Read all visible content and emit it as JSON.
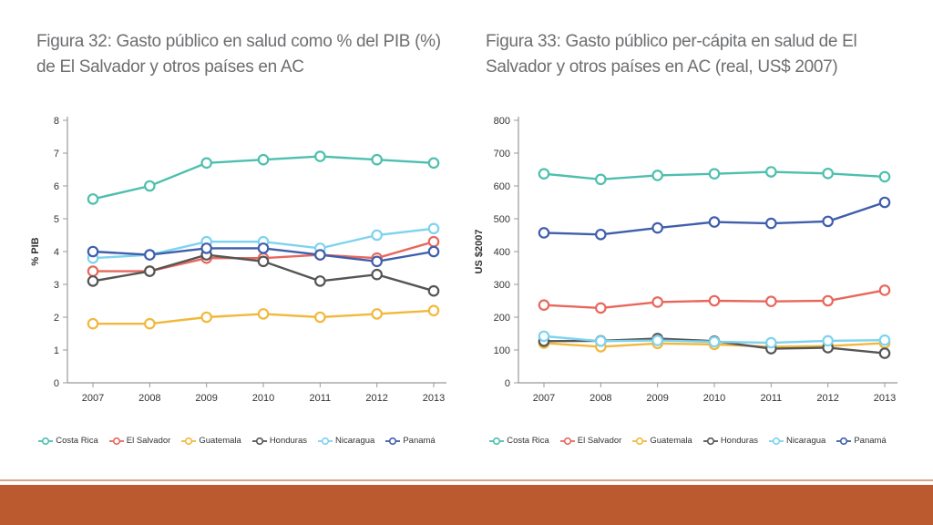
{
  "charts": [
    {
      "id": "left",
      "title": "Figura 32: Gasto público en salud como % del PIB (%) de El Salvador y otros países en AC",
      "ylabel": "% PIB",
      "ylim": [
        0,
        8
      ],
      "yticks": [
        "0",
        "1",
        "2",
        "3",
        "4",
        "5",
        "6",
        "7",
        "8"
      ],
      "categories": [
        "2007",
        "2008",
        "2009",
        "2010",
        "2011",
        "2012",
        "2013"
      ]
    },
    {
      "id": "right",
      "title": "Figura 33: Gasto público per-cápita en salud de El Salvador y otros países en AC (real, US$ 2007)",
      "ylabel": "US $2007",
      "ylim": [
        0,
        800
      ],
      "yticks": [
        "0",
        "100",
        "200",
        "300",
        "400",
        "500",
        "600",
        "700",
        "800"
      ],
      "categories": [
        "2007",
        "2008",
        "2009",
        "2010",
        "2011",
        "2012",
        "2013"
      ]
    }
  ],
  "legend": [
    "Costa Rica",
    "El Salvador",
    "Guatemala",
    "Honduras",
    "Nicaragua",
    "Panamá"
  ],
  "colors": {
    "Costa Rica": "#4dbfae",
    "El Salvador": "#e8675c",
    "Guatemala": "#f2b83c",
    "Honduras": "#555555",
    "Nicaragua": "#7dd3ee",
    "Panamá": "#3f5eab",
    "footer": "#bb5a2e"
  },
  "chart_data": [
    {
      "type": "line",
      "title": "Figura 32: Gasto público en salud como % del PIB (%) de El Salvador y otros países en AC",
      "xlabel": "",
      "ylabel": "% PIB",
      "x": [
        "2007",
        "2008",
        "2009",
        "2010",
        "2011",
        "2012",
        "2013"
      ],
      "ylim": [
        0,
        8
      ],
      "grid": false,
      "legend_position": "bottom",
      "series": [
        {
          "name": "Costa Rica",
          "values": [
            5.6,
            6.0,
            6.7,
            6.8,
            6.9,
            6.8,
            6.7
          ]
        },
        {
          "name": "El Salvador",
          "values": [
            3.4,
            3.4,
            3.8,
            3.8,
            3.9,
            3.8,
            4.3
          ]
        },
        {
          "name": "Guatemala",
          "values": [
            1.8,
            1.8,
            2.0,
            2.1,
            2.0,
            2.1,
            2.2
          ]
        },
        {
          "name": "Honduras",
          "values": [
            3.1,
            3.4,
            3.9,
            3.7,
            3.1,
            3.3,
            2.8
          ]
        },
        {
          "name": "Nicaragua",
          "values": [
            3.8,
            3.9,
            4.3,
            4.3,
            4.1,
            4.5,
            4.7
          ]
        },
        {
          "name": "Panamá",
          "values": [
            4.0,
            3.9,
            4.1,
            4.1,
            3.9,
            3.7,
            4.0
          ]
        }
      ]
    },
    {
      "type": "line",
      "title": "Figura 33: Gasto público per-cápita en salud de El Salvador y otros países en AC (real, US$ 2007)",
      "xlabel": "",
      "ylabel": "US $2007",
      "x": [
        "2007",
        "2008",
        "2009",
        "2010",
        "2011",
        "2012",
        "2013"
      ],
      "ylim": [
        0,
        800
      ],
      "grid": false,
      "legend_position": "bottom",
      "series": [
        {
          "name": "Costa Rica",
          "values": [
            637,
            620,
            632,
            637,
            643,
            638,
            628
          ]
        },
        {
          "name": "El Salvador",
          "values": [
            237,
            228,
            246,
            250,
            248,
            250,
            282
          ]
        },
        {
          "name": "Guatemala",
          "values": [
            121,
            110,
            120,
            117,
            110,
            112,
            121
          ]
        },
        {
          "name": "Honduras",
          "values": [
            127,
            128,
            135,
            127,
            104,
            107,
            90
          ]
        },
        {
          "name": "Nicaragua",
          "values": [
            142,
            127,
            129,
            125,
            122,
            128,
            130
          ]
        },
        {
          "name": "Panamá",
          "values": [
            457,
            452,
            472,
            490,
            486,
            492,
            550
          ]
        }
      ]
    }
  ]
}
